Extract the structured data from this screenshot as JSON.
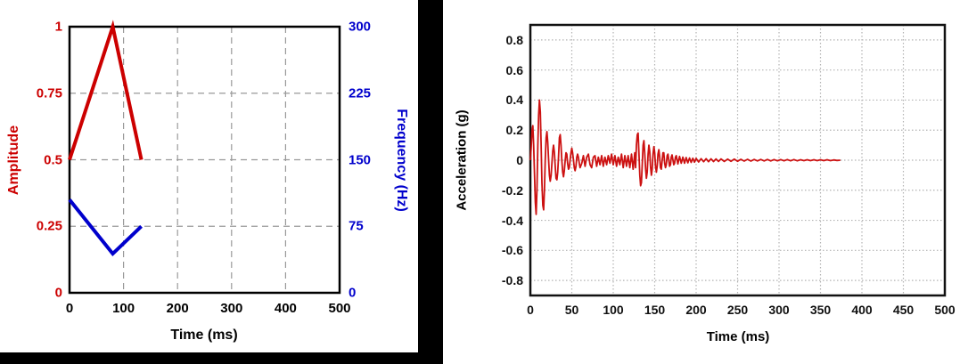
{
  "colors": {
    "amplitude_red": "#cc0000",
    "frequency_blue": "#0000cc",
    "trace_red": "#cc1111",
    "grid_gray_left": "#999999",
    "grid_gray_right": "#b3b3b3",
    "frame_black": "#000000"
  },
  "chart_data": [
    {
      "id": "amplitude-frequency-schedule",
      "type": "line",
      "title": "",
      "xlabel": "Time (ms)",
      "ylabel_left": "Amplitude",
      "ylabel_right": "Frequency (Hz)",
      "xlim": [
        0,
        500
      ],
      "ylim_left": [
        0,
        1
      ],
      "ylim_right": [
        0,
        300
      ],
      "x_ticks": [
        "0",
        "100",
        "200",
        "300",
        "400",
        "500"
      ],
      "y_ticks_left": [
        "0",
        "0.25",
        "0.5",
        "0.75",
        "1"
      ],
      "y_ticks_right": [
        "0",
        "75",
        "150",
        "225",
        "300"
      ],
      "grid": "dashed",
      "legend_position": "none",
      "series": [
        {
          "name": "Amplitude",
          "axis": "left",
          "color": "#cc0000",
          "points": [
            [
              0,
              0.5
            ],
            [
              80,
              1.0
            ],
            [
              133,
              0.5
            ]
          ]
        },
        {
          "name": "Frequency (Hz)",
          "axis": "right",
          "color": "#0000cc",
          "points": [
            [
              0,
              105
            ],
            [
              80,
              44
            ],
            [
              133,
              75
            ]
          ]
        }
      ]
    },
    {
      "id": "acceleration-time-history",
      "type": "line",
      "title": "",
      "xlabel": "Time (ms)",
      "ylabel": "Acceleration (g)",
      "xlim": [
        0,
        500
      ],
      "ylim": [
        -0.9,
        0.9
      ],
      "x_ticks": [
        "0",
        "50",
        "100",
        "150",
        "200",
        "250",
        "300",
        "350",
        "400",
        "450",
        "500"
      ],
      "y_ticks": [
        "0.8",
        "0.6",
        "0.4",
        "0.2",
        "0",
        "-0.2",
        "-0.4",
        "-0.6",
        "-0.8"
      ],
      "grid": "dotted",
      "legend_position": "none",
      "series": [
        {
          "name": "Acceleration",
          "color": "#cc1111",
          "points": [
            [
              0,
              0
            ],
            [
              1,
              0.08
            ],
            [
              2,
              0.2
            ],
            [
              3,
              0.23
            ],
            [
              4,
              0.1
            ],
            [
              5,
              -0.1
            ],
            [
              6,
              -0.28
            ],
            [
              7,
              -0.36
            ],
            [
              8,
              -0.2
            ],
            [
              9,
              0.1
            ],
            [
              10,
              0.3
            ],
            [
              11,
              0.4
            ],
            [
              12,
              0.32
            ],
            [
              13,
              0.1
            ],
            [
              14,
              -0.15
            ],
            [
              15,
              -0.3
            ],
            [
              16,
              -0.33
            ],
            [
              17,
              -0.2
            ],
            [
              18,
              0
            ],
            [
              19,
              0.15
            ],
            [
              20,
              0.19
            ],
            [
              21,
              0.12
            ],
            [
              22,
              0
            ],
            [
              23,
              -0.1
            ],
            [
              24,
              -0.14
            ],
            [
              25,
              -0.1
            ],
            [
              26,
              -0.02
            ],
            [
              27,
              0.06
            ],
            [
              28,
              0.1
            ],
            [
              29,
              0.05
            ],
            [
              30,
              -0.04
            ],
            [
              31,
              -0.12
            ],
            [
              32,
              -0.13
            ],
            [
              33,
              -0.08
            ],
            [
              34,
              0.02
            ],
            [
              35,
              0.15
            ],
            [
              36,
              0.17
            ],
            [
              37,
              0.1
            ],
            [
              38,
              0
            ],
            [
              39,
              -0.08
            ],
            [
              40,
              -0.11
            ],
            [
              41,
              -0.07
            ],
            [
              42,
              0
            ],
            [
              43,
              0.05
            ],
            [
              44,
              0.04
            ],
            [
              45,
              -0.02
            ],
            [
              46,
              -0.06
            ],
            [
              47,
              -0.05
            ],
            [
              48,
              0
            ],
            [
              49,
              0.05
            ],
            [
              50,
              0.08
            ],
            [
              51,
              0.05
            ],
            [
              52,
              0
            ],
            [
              53,
              -0.05
            ],
            [
              54,
              -0.07
            ],
            [
              55,
              -0.04
            ],
            [
              56,
              0.02
            ],
            [
              57,
              0.04
            ],
            [
              58,
              0.02
            ],
            [
              59,
              -0.02
            ],
            [
              60,
              -0.05
            ],
            [
              62,
              -0.02
            ],
            [
              64,
              0.03
            ],
            [
              66,
              -0.04
            ],
            [
              68,
              0.02
            ],
            [
              70,
              0.04
            ],
            [
              72,
              -0.03
            ],
            [
              74,
              -0.05
            ],
            [
              76,
              0.02
            ],
            [
              78,
              0.03
            ],
            [
              80,
              -0.04
            ],
            [
              82,
              0.02
            ],
            [
              84,
              -0.03
            ],
            [
              86,
              0.03
            ],
            [
              88,
              -0.04
            ],
            [
              90,
              0.02
            ],
            [
              92,
              -0.03
            ],
            [
              94,
              0.03
            ],
            [
              96,
              -0.02
            ],
            [
              98,
              0.04
            ],
            [
              100,
              -0.03
            ],
            [
              102,
              0.03
            ],
            [
              104,
              -0.04
            ],
            [
              106,
              0.02
            ],
            [
              108,
              -0.03
            ],
            [
              110,
              0.04
            ],
            [
              112,
              -0.05
            ],
            [
              114,
              0.03
            ],
            [
              116,
              -0.04
            ],
            [
              118,
              0.03
            ],
            [
              120,
              -0.05
            ],
            [
              122,
              0.04
            ],
            [
              124,
              -0.06
            ],
            [
              126,
              0.05
            ],
            [
              127,
              -0.05
            ],
            [
              128,
              0.1
            ],
            [
              129,
              0.17
            ],
            [
              130,
              0.18
            ],
            [
              131,
              0.05
            ],
            [
              132,
              -0.1
            ],
            [
              133,
              -0.17
            ],
            [
              134,
              -0.15
            ],
            [
              135,
              -0.02
            ],
            [
              136,
              0.1
            ],
            [
              137,
              0.13
            ],
            [
              138,
              0.05
            ],
            [
              139,
              -0.06
            ],
            [
              140,
              -0.12
            ],
            [
              141,
              -0.08
            ],
            [
              142,
              0.04
            ],
            [
              143,
              0.1
            ],
            [
              144,
              0.06
            ],
            [
              145,
              -0.04
            ],
            [
              146,
              -0.1
            ],
            [
              147,
              -0.06
            ],
            [
              148,
              0.04
            ],
            [
              149,
              0.09
            ],
            [
              150,
              0.05
            ],
            [
              151,
              -0.04
            ],
            [
              152,
              -0.08
            ],
            [
              153,
              -0.04
            ],
            [
              154,
              0.04
            ],
            [
              155,
              0.07
            ],
            [
              156,
              0.02
            ],
            [
              157,
              -0.05
            ],
            [
              158,
              -0.06
            ],
            [
              159,
              0
            ],
            [
              160,
              0.05
            ],
            [
              161,
              0.05
            ],
            [
              162,
              -0.02
            ],
            [
              163,
              -0.05
            ],
            [
              164,
              -0.03
            ],
            [
              165,
              0.03
            ],
            [
              166,
              0.04
            ],
            [
              167,
              0
            ],
            [
              168,
              -0.04
            ],
            [
              169,
              -0.03
            ],
            [
              170,
              0.02
            ],
            [
              171,
              0.035
            ],
            [
              172,
              0
            ],
            [
              173,
              -0.03
            ],
            [
              174,
              -0.02
            ],
            [
              175,
              0.02
            ],
            [
              176,
              0.03
            ],
            [
              178,
              -0.025
            ],
            [
              180,
              0.025
            ],
            [
              182,
              -0.02
            ],
            [
              184,
              0.02
            ],
            [
              186,
              -0.02
            ],
            [
              188,
              0.018
            ],
            [
              190,
              -0.018
            ],
            [
              192,
              0.015
            ],
            [
              194,
              -0.015
            ],
            [
              196,
              0.013
            ],
            [
              198,
              -0.013
            ],
            [
              200,
              0.012
            ],
            [
              203,
              -0.012
            ],
            [
              206,
              0.01
            ],
            [
              209,
              -0.01
            ],
            [
              212,
              0.01
            ],
            [
              215,
              -0.01
            ],
            [
              218,
              0.009
            ],
            [
              221,
              -0.009
            ],
            [
              224,
              0.008
            ],
            [
              227,
              -0.008
            ],
            [
              230,
              0.008
            ],
            [
              234,
              -0.008
            ],
            [
              238,
              0.007
            ],
            [
              242,
              -0.007
            ],
            [
              246,
              0.007
            ],
            [
              250,
              -0.007
            ],
            [
              254,
              0.006
            ],
            [
              258,
              -0.006
            ],
            [
              262,
              0.006
            ],
            [
              266,
              -0.006
            ],
            [
              270,
              0.005
            ],
            [
              274,
              -0.005
            ],
            [
              278,
              0.005
            ],
            [
              282,
              -0.005
            ],
            [
              286,
              0.005
            ],
            [
              290,
              -0.005
            ],
            [
              294,
              0.004
            ],
            [
              298,
              -0.004
            ],
            [
              302,
              0.004
            ],
            [
              306,
              -0.004
            ],
            [
              310,
              0.004
            ],
            [
              314,
              -0.004
            ],
            [
              318,
              0.004
            ],
            [
              322,
              -0.004
            ],
            [
              326,
              0.003
            ],
            [
              330,
              -0.003
            ],
            [
              334,
              0.003
            ],
            [
              338,
              -0.003
            ],
            [
              342,
              0.003
            ],
            [
              346,
              -0.003
            ],
            [
              350,
              0.003
            ],
            [
              354,
              -0.003
            ],
            [
              358,
              0.003
            ],
            [
              362,
              -0.003
            ],
            [
              366,
              0.002
            ],
            [
              370,
              -0.002
            ],
            [
              374,
              0
            ]
          ]
        }
      ]
    }
  ]
}
